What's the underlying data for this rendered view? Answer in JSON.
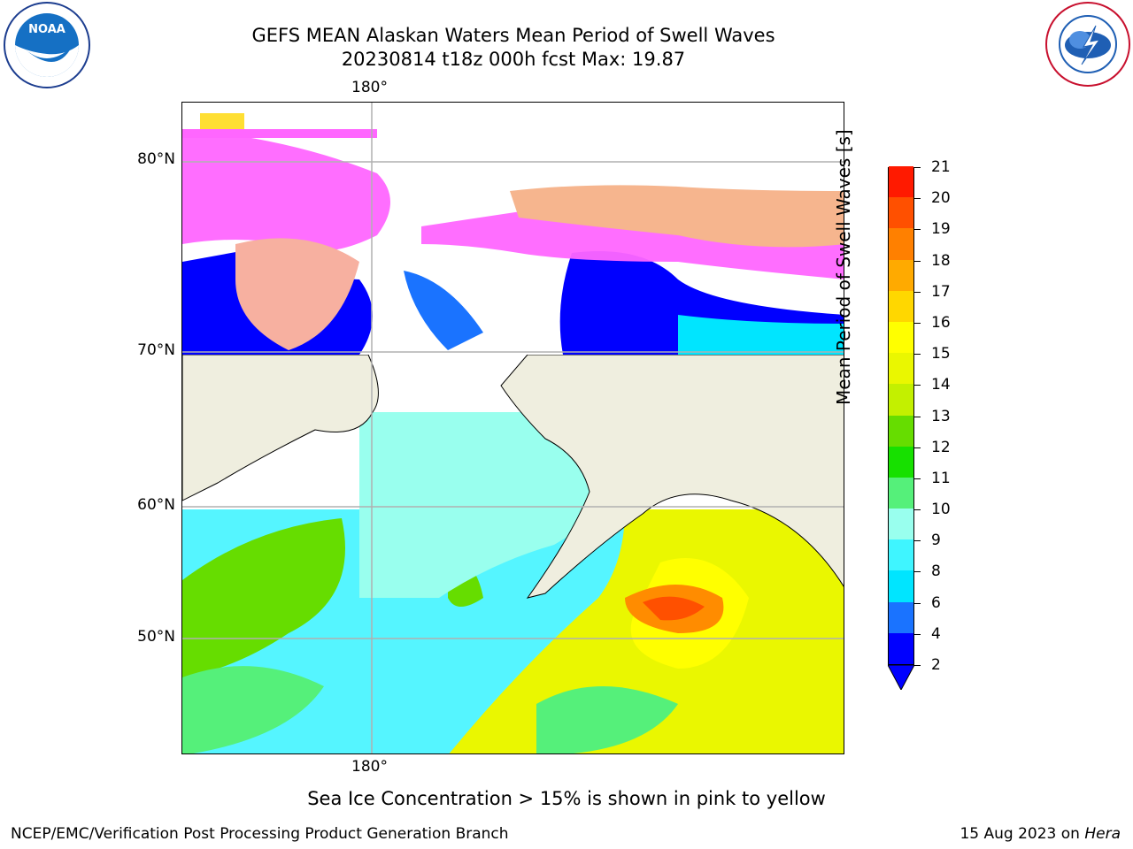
{
  "header": {
    "title_line1": "GEFS MEAN Alaskan Waters Mean Period of Swell Waves",
    "title_line2": "20230814 t18z 000h fcst   Max: 19.87"
  },
  "logos": {
    "left": "noaa-logo",
    "right": "nws-logo"
  },
  "map": {
    "lon_label_top": "180°",
    "lon_label_bottom": "180°",
    "lat_labels": [
      "80°N",
      "70°N",
      "60°N",
      "50°N"
    ]
  },
  "colorbar": {
    "title": "Mean Period of Swell Waves [s]",
    "ticks": [
      "2",
      "4",
      "6",
      "8",
      "9",
      "10",
      "11",
      "12",
      "13",
      "14",
      "15",
      "16",
      "17",
      "18",
      "19",
      "20",
      "21"
    ],
    "colors": [
      "#0000ff",
      "#1a73ff",
      "#00e5ff",
      "#3ff5ff",
      "#99ffee",
      "#55f07a",
      "#17e000",
      "#66dd00",
      "#c3f000",
      "#eaf700",
      "#ffff00",
      "#ffd700",
      "#ffaa00",
      "#ff8000",
      "#ff5000",
      "#ff1a00",
      "#ff0000"
    ]
  },
  "legend_note": "Sea Ice Concentration > 15% is shown in pink to yellow",
  "footer": {
    "left": "NCEP/EMC/Verification Post Processing Product Generation Branch",
    "right_prefix": "15 Aug 2023 on ",
    "right_host": "Hera"
  }
}
